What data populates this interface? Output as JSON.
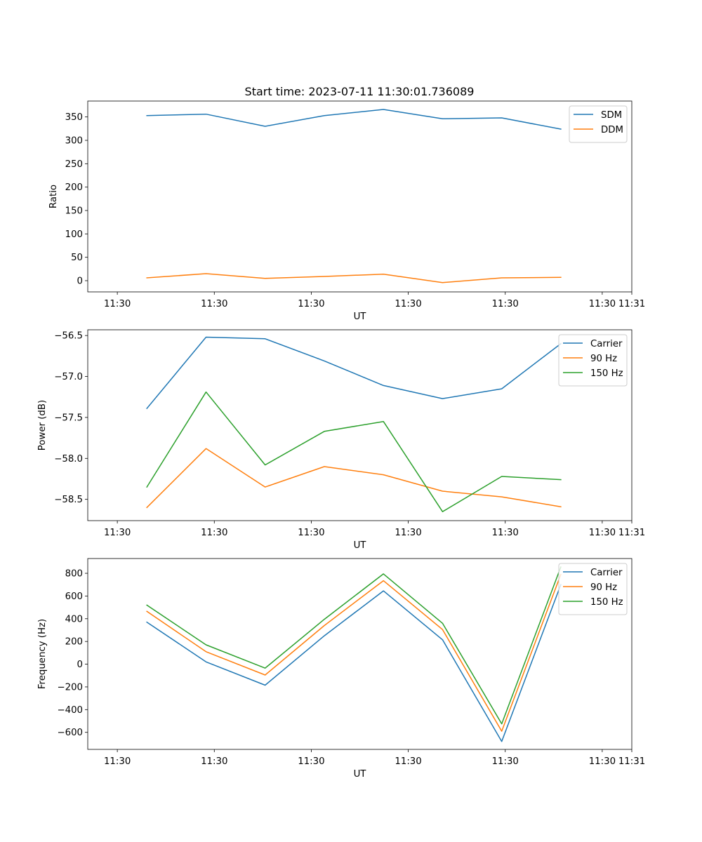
{
  "figure_title": "Start time: 2023-07-11 11:30:01.736089",
  "chart_data": [
    {
      "type": "line",
      "title": "Start time: 2023-07-11 11:30:01.736089",
      "xlabel": "UT",
      "ylabel": "Ratio",
      "x_tick_labels": [
        "11:30",
        "11:30",
        "11:30",
        "11:30",
        "11:30",
        "11:30",
        "11:31"
      ],
      "x_samples": [
        1,
        2,
        3,
        4,
        5,
        6,
        7,
        8
      ],
      "xlim": [
        0,
        9.2
      ],
      "ylim": [
        -24,
        384
      ],
      "yticks": [
        0,
        50,
        100,
        150,
        200,
        250,
        300,
        350
      ],
      "y_tick_labels": [
        "0",
        "50",
        "100",
        "150",
        "200",
        "250",
        "300",
        "350"
      ],
      "legend_loc": "upper right",
      "series": [
        {
          "name": "SDM",
          "color": "#1f77b4",
          "values": [
            353,
            356,
            330,
            353,
            366,
            346,
            348,
            324
          ]
        },
        {
          "name": "DDM",
          "color": "#ff7f0e",
          "values": [
            6,
            15,
            5,
            9,
            14,
            -4,
            6,
            7
          ]
        }
      ]
    },
    {
      "type": "line",
      "xlabel": "UT",
      "ylabel": "Power (dB)",
      "x_tick_labels": [
        "11:30",
        "11:30",
        "11:30",
        "11:30",
        "11:30",
        "11:30",
        "11:31"
      ],
      "x_samples": [
        1,
        2,
        3,
        4,
        5,
        6,
        7,
        8
      ],
      "xlim": [
        0,
        9.2
      ],
      "ylim": [
        -58.76,
        -56.43
      ],
      "yticks": [
        -58.5,
        -58.0,
        -57.5,
        -57.0,
        -56.5
      ],
      "y_tick_labels": [
        "−58.5",
        "−58.0",
        "−57.5",
        "−57.0",
        "−56.5"
      ],
      "legend_loc": "upper right",
      "series": [
        {
          "name": "Carrier",
          "color": "#1f77b4",
          "values": [
            -57.39,
            -56.52,
            -56.54,
            -56.81,
            -57.11,
            -57.27,
            -57.15,
            -56.6
          ]
        },
        {
          "name": "90 Hz",
          "color": "#ff7f0e",
          "values": [
            -58.6,
            -57.88,
            -58.35,
            -58.1,
            -58.2,
            -58.4,
            -58.47,
            -58.59
          ]
        },
        {
          "name": "150 Hz",
          "color": "#2ca02c",
          "values": [
            -58.35,
            -57.19,
            -58.08,
            -57.67,
            -57.55,
            -58.65,
            -58.22,
            -58.26
          ]
        }
      ]
    },
    {
      "type": "line",
      "xlabel": "UT",
      "ylabel": "Frequency (Hz)",
      "x_tick_labels": [
        "11:30",
        "11:30",
        "11:30",
        "11:30",
        "11:30",
        "11:30",
        "11:31"
      ],
      "x_samples": [
        1,
        2,
        3,
        4,
        5,
        6,
        7,
        8
      ],
      "xlim": [
        0,
        9.2
      ],
      "ylim": [
        -750,
        930
      ],
      "yticks": [
        -600,
        -400,
        -200,
        0,
        200,
        400,
        600,
        800
      ],
      "y_tick_labels": [
        "−600",
        "−400",
        "−200",
        "0",
        "200",
        "400",
        "600",
        "800"
      ],
      "legend_loc": "upper right",
      "series": [
        {
          "name": "Carrier",
          "color": "#1f77b4",
          "values": [
            370,
            20,
            -185,
            250,
            645,
            215,
            -680,
            700
          ]
        },
        {
          "name": "90 Hz",
          "color": "#ff7f0e",
          "values": [
            465,
            110,
            -95,
            340,
            735,
            305,
            -590,
            790
          ]
        },
        {
          "name": "150 Hz",
          "color": "#2ca02c",
          "values": [
            520,
            170,
            -35,
            395,
            795,
            360,
            -525,
            855
          ]
        }
      ]
    }
  ]
}
